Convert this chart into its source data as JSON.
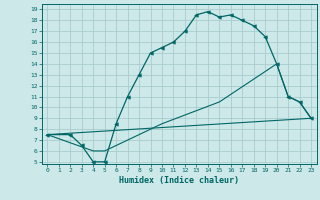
{
  "xlabel": "Humidex (Indice chaleur)",
  "bg_color": "#cce8e8",
  "grid_color": "#aacccc",
  "line_color": "#006666",
  "xlim": [
    -0.5,
    23.5
  ],
  "ylim": [
    4.8,
    19.5
  ],
  "yticks": [
    5,
    6,
    7,
    8,
    9,
    10,
    11,
    12,
    13,
    14,
    15,
    16,
    17,
    18,
    19
  ],
  "xticks": [
    0,
    1,
    2,
    3,
    4,
    5,
    6,
    7,
    8,
    9,
    10,
    11,
    12,
    13,
    14,
    15,
    16,
    17,
    18,
    19,
    20,
    21,
    22,
    23
  ],
  "line1_x": [
    0,
    2,
    3,
    4,
    5,
    6,
    7,
    8,
    9,
    10,
    11,
    12,
    13,
    14,
    15,
    16,
    17,
    18,
    19,
    20,
    21,
    22,
    23
  ],
  "line1_y": [
    7.5,
    7.5,
    6.5,
    5.0,
    5.0,
    8.5,
    11.0,
    13.0,
    15.0,
    15.5,
    16.0,
    17.0,
    18.5,
    18.8,
    18.3,
    18.5,
    18.0,
    17.5,
    16.5,
    14.0,
    11.0,
    10.5,
    9.0
  ],
  "line2_x": [
    0,
    23
  ],
  "line2_y": [
    7.5,
    9.0
  ],
  "line3_x": [
    0,
    4,
    5,
    10,
    15,
    20,
    21,
    22,
    23
  ],
  "line3_y": [
    7.5,
    6.0,
    6.0,
    8.5,
    10.5,
    14.0,
    11.0,
    10.5,
    9.0
  ],
  "xlabel_fontsize": 6,
  "tick_fontsize": 4.5
}
